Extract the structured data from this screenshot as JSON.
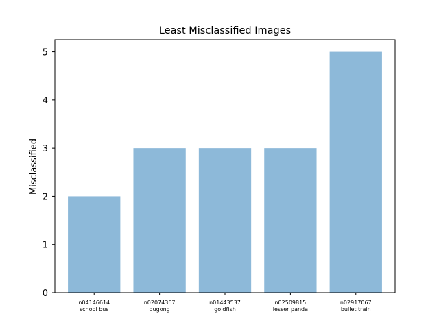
{
  "chart_data": {
    "type": "bar",
    "title": "Least Misclassified Images",
    "xlabel": "",
    "ylabel": "Misclassified",
    "categories": [
      [
        "n04146614",
        "school bus"
      ],
      [
        "n02074367",
        "dugong"
      ],
      [
        "n01443537",
        "goldfish"
      ],
      [
        "n02509815",
        "lesser panda"
      ],
      [
        "n02917067",
        "bullet train"
      ]
    ],
    "values": [
      2,
      3,
      3,
      3,
      5
    ],
    "ylim": [
      0,
      5.25
    ],
    "yticks": [
      0,
      1,
      2,
      3,
      4,
      5
    ],
    "grid": false,
    "bar_color": "#8db9d9"
  }
}
